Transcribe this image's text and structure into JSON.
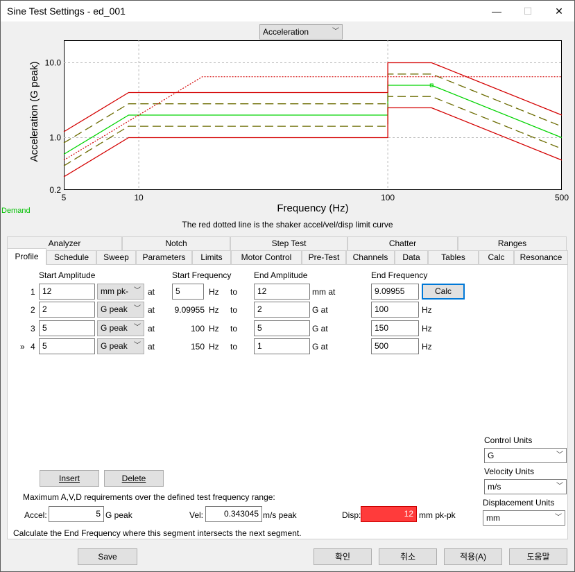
{
  "window": {
    "title": "Sine Test Settings - ed_001",
    "minimize": "—",
    "maximize": "☐",
    "close": "✕"
  },
  "graph": {
    "selector": "Acceleration",
    "ylabel": "Acceleration (G peak)",
    "xlabel": "Frequency (Hz)",
    "yticks": [
      "10.0",
      "1.0",
      "0.2"
    ],
    "xticks": [
      "5",
      "10",
      "100",
      "500"
    ],
    "demand_label": "Demand",
    "note": "The red dotted line is the shaker accel/vel/disp limit curve",
    "colors": {
      "limit": "#d40000",
      "abort": "#d40000",
      "alarm": "#6b6b00",
      "demand": "#00d400"
    }
  },
  "chart_data": {
    "type": "line",
    "x_scale": "log",
    "y_scale": "log",
    "xlim": [
      5,
      500
    ],
    "ylim": [
      0.2,
      20
    ],
    "xlabel": "Frequency (Hz)",
    "ylabel": "Acceleration (G peak)",
    "grid": true,
    "series": [
      {
        "style": "demand-green",
        "x": [
          5,
          9.09955,
          100,
          100,
          150,
          150,
          500
        ],
        "y": [
          0.6,
          2,
          2,
          5,
          5,
          5,
          1
        ]
      },
      {
        "style": "alarm-upper-dashed",
        "x": [
          5,
          9.09955,
          100,
          100,
          150,
          500
        ],
        "y": [
          0.85,
          2.83,
          2.83,
          7.07,
          7.07,
          1.41
        ]
      },
      {
        "style": "alarm-lower-dashed",
        "x": [
          5,
          9.09955,
          100,
          100,
          150,
          500
        ],
        "y": [
          0.42,
          1.42,
          1.42,
          3.54,
          3.54,
          0.71
        ]
      },
      {
        "style": "abort-upper-solid",
        "x": [
          5,
          9.09955,
          100,
          100,
          150,
          500
        ],
        "y": [
          1.2,
          4,
          4,
          10,
          10,
          2
        ]
      },
      {
        "style": "abort-lower-solid",
        "x": [
          5,
          9.09955,
          100,
          100,
          150,
          500
        ],
        "y": [
          0.3,
          1,
          1,
          2.5,
          2.5,
          0.5
        ]
      },
      {
        "style": "limit-dotted",
        "x": [
          5,
          18,
          500
        ],
        "y": [
          0.5,
          6.5,
          6.5
        ]
      }
    ]
  },
  "tabs": {
    "row1": [
      "Analyzer",
      "Notch",
      "Step Test",
      "Chatter",
      "Ranges"
    ],
    "row2": [
      "Profile",
      "Schedule",
      "Sweep",
      "Parameters",
      "Limits",
      "Motor Control",
      "Pre-Test",
      "Channels",
      "Data",
      "Tables",
      "Calc",
      "Resonance"
    ]
  },
  "profile": {
    "headers": {
      "start_amp": "Start Amplitude",
      "start_freq": "Start Frequency",
      "end_amp": "End Amplitude",
      "end_freq": "End Frequency"
    },
    "at": "at",
    "to": "to",
    "hz": "Hz",
    "calc": "Calc",
    "rows": [
      {
        "marker": "",
        "num": "1",
        "start_amp": "12",
        "unit": "mm pk-",
        "start_freq": "5",
        "end_amp": "12",
        "end_unit": "mm at",
        "end_freq": "9.09955"
      },
      {
        "marker": "",
        "num": "2",
        "start_amp": "2",
        "unit": "G peak",
        "start_freq": "9.09955",
        "end_amp": "2",
        "end_unit": "G at",
        "end_freq": "100"
      },
      {
        "marker": "",
        "num": "3",
        "start_amp": "5",
        "unit": "G peak",
        "start_freq": "100",
        "end_amp": "5",
        "end_unit": "G at",
        "end_freq": "150"
      },
      {
        "marker": "»",
        "num": "4",
        "start_amp": "5",
        "unit": "G peak",
        "start_freq": "150",
        "end_amp": "1",
        "end_unit": "G at",
        "end_freq": "500"
      }
    ],
    "control_units_label": "Control Units",
    "control_units": "G",
    "velocity_units_label": "Velocity Units",
    "velocity_units": "m/s",
    "displacement_units_label": "Displacement Units",
    "displacement_units": "mm",
    "insert": "Insert",
    "delete": "Delete",
    "max_text": "Maximum A,V,D requirements over the defined test frequency range:",
    "accel_label": "Accel:",
    "accel_value": "5",
    "accel_unit": "G peak",
    "vel_label": "Vel:",
    "vel_value": "0.343045",
    "vel_unit": "m/s peak",
    "disp_label": "Disp:",
    "disp_value": "12",
    "disp_unit": "mm pk-pk",
    "hint": "Calculate the End Frequency where this segment intersects the next segment."
  },
  "footer": {
    "save": "Save",
    "ok": "확인",
    "cancel": "취소",
    "apply": "적용(A)",
    "help": "도움말"
  }
}
